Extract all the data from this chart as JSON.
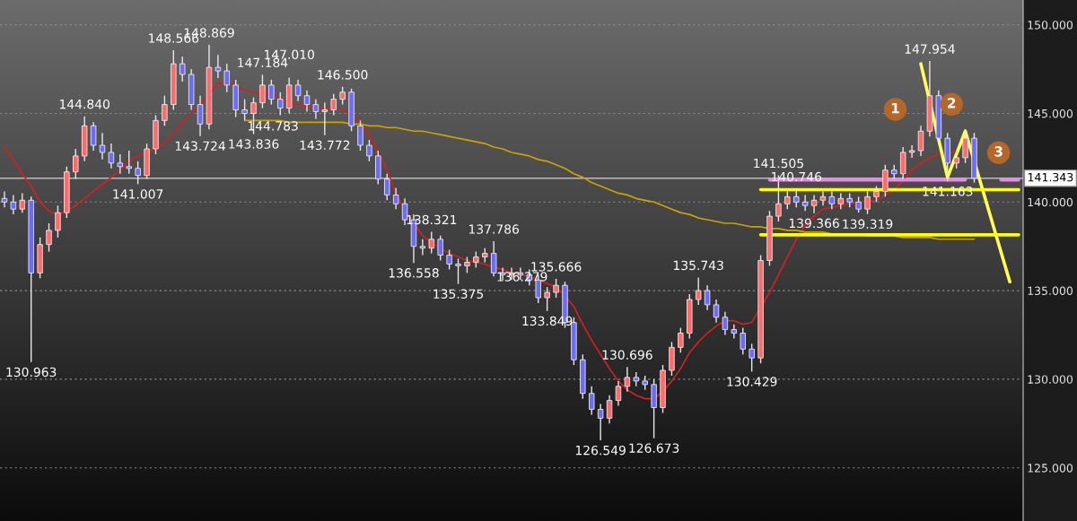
{
  "chart_data": {
    "type": "candlestick",
    "categories": [
      null,
      null,
      null,
      null,
      null,
      null,
      null,
      null,
      null,
      null,
      null,
      null,
      null,
      null,
      null,
      null,
      null,
      null,
      null,
      null,
      null,
      null,
      null,
      null,
      null,
      null,
      null,
      null,
      null,
      null,
      null,
      null,
      null,
      null,
      null,
      null,
      null,
      null,
      null,
      null,
      null,
      null,
      null,
      null,
      null,
      null,
      null,
      null,
      null,
      null,
      null,
      null,
      null,
      null,
      null,
      null,
      null,
      null,
      null,
      null,
      null,
      null,
      null,
      null,
      null,
      null,
      null,
      null,
      null,
      null,
      null,
      null,
      null,
      null,
      null,
      null,
      null,
      null,
      null,
      null,
      null,
      null,
      null,
      null,
      null,
      null,
      null,
      null,
      null,
      null,
      null,
      null,
      null,
      null,
      null,
      null,
      null,
      null,
      null,
      null,
      null,
      null,
      null,
      null,
      null,
      null,
      null,
      null,
      null,
      null,
      null,
      null,
      null,
      null,
      null
    ],
    "ohlc": [
      [
        140.2,
        140.6,
        139.7,
        140.0
      ],
      [
        140.0,
        140.4,
        139.3,
        139.6
      ],
      [
        139.6,
        140.5,
        139.4,
        140.1
      ],
      [
        140.1,
        140.3,
        130.963,
        136.0
      ],
      [
        136.0,
        138.0,
        135.7,
        137.6
      ],
      [
        137.6,
        138.8,
        137.2,
        138.4
      ],
      [
        138.4,
        139.8,
        138.0,
        139.4
      ],
      [
        139.4,
        142.0,
        139.1,
        141.7
      ],
      [
        141.7,
        143.0,
        141.3,
        142.6
      ],
      [
        142.6,
        144.84,
        142.3,
        144.3
      ],
      [
        144.3,
        144.5,
        142.9,
        143.2
      ],
      [
        143.2,
        143.9,
        142.4,
        142.8
      ],
      [
        142.8,
        143.3,
        141.9,
        142.2
      ],
      [
        142.2,
        142.7,
        141.6,
        142.0
      ],
      [
        142.0,
        142.9,
        141.6,
        141.9
      ],
      [
        141.9,
        142.3,
        141.007,
        141.5
      ],
      [
        141.5,
        143.3,
        141.3,
        143.0
      ],
      [
        143.0,
        144.9,
        142.7,
        144.6
      ],
      [
        144.6,
        146.0,
        144.3,
        145.5
      ],
      [
        145.5,
        148.566,
        145.2,
        147.8
      ],
      [
        147.8,
        148.2,
        146.8,
        147.2
      ],
      [
        147.2,
        147.5,
        145.2,
        145.5
      ],
      [
        145.5,
        146.0,
        143.724,
        144.4
      ],
      [
        144.4,
        148.869,
        144.1,
        147.6
      ],
      [
        147.6,
        148.3,
        147.0,
        147.4
      ],
      [
        147.4,
        147.8,
        146.2,
        146.6
      ],
      [
        146.6,
        146.9,
        144.8,
        145.2
      ],
      [
        145.2,
        145.8,
        144.6,
        145.0
      ],
      [
        145.0,
        145.9,
        143.836,
        145.6
      ],
      [
        145.6,
        147.184,
        145.3,
        146.6
      ],
      [
        146.6,
        146.9,
        145.5,
        145.8
      ],
      [
        145.8,
        146.2,
        144.9,
        145.3
      ],
      [
        145.3,
        147.01,
        145.0,
        146.6
      ],
      [
        146.6,
        146.9,
        145.7,
        146.0
      ],
      [
        146.0,
        146.3,
        145.1,
        145.5
      ],
      [
        145.5,
        145.8,
        144.7,
        145.1
      ],
      [
        145.1,
        145.6,
        143.772,
        145.2
      ],
      [
        145.2,
        146.1,
        144.9,
        145.8
      ],
      [
        145.8,
        146.5,
        145.5,
        146.2
      ],
      [
        146.2,
        146.4,
        144.0,
        144.3
      ],
      [
        144.3,
        144.6,
        142.9,
        143.2
      ],
      [
        143.2,
        143.5,
        142.3,
        142.6
      ],
      [
        142.6,
        142.9,
        141.0,
        141.3
      ],
      [
        141.3,
        141.6,
        140.1,
        140.4
      ],
      [
        140.4,
        140.8,
        139.6,
        139.9
      ],
      [
        139.9,
        140.2,
        138.7,
        139.0
      ],
      [
        139.0,
        139.3,
        136.558,
        137.5
      ],
      [
        137.5,
        137.9,
        137.0,
        137.4
      ],
      [
        137.4,
        138.321,
        137.1,
        137.9
      ],
      [
        137.9,
        138.1,
        136.7,
        137.0
      ],
      [
        137.0,
        137.3,
        136.2,
        136.5
      ],
      [
        136.5,
        136.8,
        135.375,
        136.4
      ],
      [
        136.4,
        136.9,
        136.0,
        136.6
      ],
      [
        136.6,
        137.2,
        136.3,
        136.9
      ],
      [
        136.9,
        137.4,
        136.6,
        137.1
      ],
      [
        137.1,
        137.786,
        135.8,
        136.0
      ],
      [
        136.0,
        136.3,
        135.6,
        135.9
      ],
      [
        135.9,
        136.3,
        135.6,
        136.0
      ],
      [
        136.0,
        136.3,
        135.6,
        135.9
      ],
      [
        135.9,
        136.2,
        135.3,
        135.6
      ],
      [
        135.6,
        135.9,
        134.3,
        134.6
      ],
      [
        134.6,
        135.2,
        133.849,
        134.9
      ],
      [
        134.9,
        135.666,
        134.6,
        135.3
      ],
      [
        135.3,
        135.5,
        132.9,
        133.2
      ],
      [
        133.2,
        133.5,
        130.8,
        131.1
      ],
      [
        131.1,
        131.4,
        128.9,
        129.2
      ],
      [
        129.2,
        129.6,
        128.0,
        128.3
      ],
      [
        128.3,
        128.6,
        126.549,
        127.8
      ],
      [
        127.8,
        129.1,
        127.5,
        128.8
      ],
      [
        128.8,
        129.9,
        128.5,
        129.6
      ],
      [
        129.6,
        130.696,
        129.3,
        130.1
      ],
      [
        130.1,
        130.4,
        129.6,
        129.9
      ],
      [
        129.9,
        130.2,
        129.4,
        129.7
      ],
      [
        129.7,
        130.0,
        126.673,
        128.4
      ],
      [
        128.4,
        130.8,
        128.1,
        130.5
      ],
      [
        130.5,
        132.1,
        130.2,
        131.8
      ],
      [
        131.8,
        132.9,
        131.5,
        132.6
      ],
      [
        132.6,
        134.8,
        132.3,
        134.5
      ],
      [
        134.5,
        135.743,
        134.2,
        135.0
      ],
      [
        135.0,
        135.3,
        133.9,
        134.2
      ],
      [
        134.2,
        134.5,
        133.2,
        133.5
      ],
      [
        133.5,
        133.8,
        132.5,
        132.8
      ],
      [
        132.8,
        133.1,
        132.3,
        132.6
      ],
      [
        132.6,
        132.9,
        131.4,
        131.7
      ],
      [
        131.7,
        132.0,
        130.429,
        131.2
      ],
      [
        131.2,
        137.0,
        130.9,
        136.7
      ],
      [
        136.7,
        139.5,
        136.4,
        139.2
      ],
      [
        139.2,
        141.505,
        138.9,
        139.9
      ],
      [
        139.9,
        140.6,
        139.6,
        140.3
      ],
      [
        140.3,
        140.746,
        139.7,
        140.0
      ],
      [
        140.0,
        140.4,
        139.5,
        139.8
      ],
      [
        139.8,
        140.4,
        139.366,
        140.1
      ],
      [
        140.1,
        140.6,
        139.8,
        140.3
      ],
      [
        140.3,
        140.6,
        139.6,
        139.9
      ],
      [
        139.9,
        140.5,
        139.6,
        140.2
      ],
      [
        140.2,
        140.5,
        139.7,
        140.0
      ],
      [
        140.0,
        140.3,
        139.4,
        139.6
      ],
      [
        139.6,
        140.6,
        139.319,
        140.3
      ],
      [
        140.3,
        140.9,
        140.0,
        140.6
      ],
      [
        140.6,
        142.1,
        140.3,
        141.8
      ],
      [
        141.8,
        142.1,
        141.3,
        141.6
      ],
      [
        141.6,
        143.1,
        141.3,
        142.8
      ],
      [
        142.8,
        143.2,
        142.5,
        142.9
      ],
      [
        142.9,
        144.3,
        142.6,
        144.0
      ],
      [
        144.0,
        147.954,
        143.7,
        146.0
      ],
      [
        146.0,
        146.3,
        143.3,
        143.6
      ],
      [
        143.6,
        143.9,
        141.163,
        142.2
      ],
      [
        142.2,
        142.8,
        141.9,
        142.5
      ],
      [
        142.5,
        144.1,
        142.2,
        143.6
      ],
      [
        143.6,
        143.9,
        141.1,
        141.343
      ],
      null,
      null,
      null,
      null,
      null
    ],
    "colors": [
      "#6b6bff",
      "#6b6bff",
      "#ff6b6b",
      "#6b6bff",
      "#ff6b6b",
      "#ff6b6b",
      "#ff6b6b",
      "#ff6b6b",
      "#ff6b6b",
      "#ff6b6b",
      "#6b6bff",
      "#6b6bff",
      "#6b6bff",
      "#6b6bff",
      "#6b6bff",
      "#6b6bff",
      "#ff6b6b",
      "#ff6b6b",
      "#ff6b6b",
      "#ff6b6b",
      "#6b6bff",
      "#6b6bff",
      "#6b6bff",
      "#ff6b6b",
      "#6b6bff",
      "#6b6bff",
      "#6b6bff",
      "#6b6bff",
      "#ff6b6b",
      "#ff6b6b",
      "#6b6bff",
      "#6b6bff",
      "#ff6b6b",
      "#6b6bff",
      "#6b6bff",
      "#6b6bff",
      "#ff6b6b",
      "#ff6b6b",
      "#ff6b6b",
      "#6b6bff",
      "#6b6bff",
      "#6b6bff",
      "#6b6bff",
      "#6b6bff",
      "#6b6bff",
      "#6b6bff",
      "#6b6bff",
      "#6b6bff",
      "#ff6b6b",
      "#6b6bff",
      "#6b6bff",
      "#6b6bff",
      "#ff6b6b",
      "#ff6b6b",
      "#ff6b6b",
      "#6b6bff",
      "#6b6bff",
      "#ff6b6b",
      "#6b6bff",
      "#6b6bff",
      "#6b6bff",
      "#ff6b6b",
      "#ff6b6b",
      "#6b6bff",
      "#6b6bff",
      "#6b6bff",
      "#6b6bff",
      "#6b6bff",
      "#ff6b6b",
      "#ff6b6b",
      "#ff6b6b",
      "#6b6bff",
      "#6b6bff",
      "#6b6bff",
      "#ff6b6b",
      "#ff6b6b",
      "#ff6b6b",
      "#ff6b6b",
      "#ff6b6b",
      "#6b6bff",
      "#6b6bff",
      "#6b6bff",
      "#6b6bff",
      "#6b6bff",
      "#6b6bff",
      "#ff6b6b",
      "#ff6b6b",
      "#ff6b6b",
      "#ff6b6b",
      "#6b6bff",
      "#6b6bff",
      "#ff6b6b",
      "#ff6b6b",
      "#6b6bff",
      "#ff6b6b",
      "#6b6bff",
      "#6b6bff",
      "#ff6b6b",
      "#ff6b6b",
      "#ff6b6b",
      "#6b6bff",
      "#ff6b6b",
      "#ff6b6b",
      "#ff6b6b",
      "#ff6b6b",
      "#6b6bff",
      "#6b6bff",
      "#ff6b6b",
      "#ff6b6b",
      "#6b6bff",
      null,
      null,
      null,
      null,
      null
    ],
    "series": [
      {
        "type": "line",
        "color": "#d42020",
        "values": [
          143.1,
          142.4,
          141.6,
          140.9,
          140.0,
          139.5,
          139.3,
          139.5,
          139.8,
          140.2,
          140.6,
          141.0,
          141.4,
          141.8,
          142.3,
          142.6,
          142.9,
          143.0,
          143.3,
          143.9,
          144.5,
          145.0,
          145.5,
          null,
          146.7,
          146.7,
          146.6,
          146.3,
          146.2,
          146.1,
          146.1,
          145.9,
          145.6,
          145.5,
          145.4,
          145.4,
          145.3,
          145.3,
          145.2,
          145.0,
          144.5,
          143.8,
          142.8,
          141.8,
          140.5,
          139.5,
          null,
          138.1,
          137.7,
          137.4,
          137.1,
          136.9,
          136.7,
          136.6,
          136.5,
          136.3,
          136.2,
          136.0,
          135.9,
          135.8,
          135.6,
          135.4,
          135.2,
          134.7,
          134.1,
          133.1,
          132.2,
          131.4,
          130.6,
          129.9,
          129.4,
          129.1,
          128.9,
          128.9,
          129.3,
          129.9,
          130.6,
          131.5,
          132.1,
          132.6,
          133.0,
          133.3,
          133.3,
          133.1,
          133.2,
          null,
          134.9,
          135.9,
          136.9,
          137.9,
          138.7,
          139.2,
          139.6,
          139.7,
          139.8,
          139.9,
          140.0,
          140.0,
          140.1,
          140.4,
          140.7,
          141.2,
          141.8,
          142.2,
          142.5,
          142.7,
          142.7,
          142.9,
          null,
          null,
          null,
          null,
          null,
          null,
          null
        ]
      },
      {
        "type": "line",
        "color": "#c9a400",
        "values": [
          null,
          null,
          null,
          null,
          null,
          null,
          null,
          null,
          null,
          null,
          null,
          null,
          null,
          null,
          null,
          null,
          null,
          null,
          null,
          null,
          null,
          null,
          null,
          null,
          null,
          null,
          null,
          144.6,
          144.6,
          144.6,
          144.6,
          144.6,
          144.5,
          144.5,
          144.5,
          144.5,
          144.5,
          144.5,
          144.5,
          144.4,
          144.4,
          144.3,
          144.3,
          144.2,
          144.2,
          144.1,
          144.0,
          144.0,
          143.9,
          143.8,
          143.7,
          143.6,
          143.5,
          143.4,
          143.3,
          143.1,
          143.0,
          142.8,
          142.7,
          142.6,
          142.4,
          142.3,
          142.1,
          141.9,
          141.6,
          141.4,
          141.1,
          140.9,
          140.7,
          140.5,
          140.4,
          140.2,
          140.1,
          140.0,
          139.8,
          139.6,
          139.4,
          139.3,
          139.1,
          139.0,
          138.9,
          138.8,
          138.8,
          138.7,
          138.6,
          138.6,
          138.5,
          138.5,
          138.4,
          138.4,
          138.3,
          138.3,
          138.3,
          138.2,
          138.2,
          138.2,
          138.2,
          138.1,
          null,
          null,
          138.1,
          138.0,
          138.0,
          138.0,
          138.0,
          137.9,
          137.9,
          137.9,
          137.9,
          137.9,
          null,
          null,
          null,
          null,
          null
        ]
      },
      {
        "type": "line",
        "color": "#ee82ee",
        "values": [
          null,
          null,
          null,
          null,
          null,
          null,
          null,
          null,
          null,
          null,
          null,
          null,
          null,
          null,
          null,
          null,
          null,
          null,
          null,
          null,
          null,
          null,
          null,
          null,
          null,
          null,
          null,
          null,
          null,
          null,
          null,
          null,
          null,
          null,
          null,
          null,
          null,
          null,
          null,
          null,
          null,
          null,
          null,
          null,
          null,
          null,
          null,
          null,
          null,
          null,
          null,
          null,
          null,
          null,
          null,
          null,
          null,
          null,
          null,
          null,
          null,
          null,
          null,
          null,
          null,
          null,
          null,
          null,
          null,
          null,
          null,
          null,
          null,
          null,
          null,
          null,
          null,
          null,
          null,
          null,
          null,
          null,
          null,
          null,
          null,
          null,
          141.25,
          141.25,
          141.25,
          141.25,
          141.25,
          141.25,
          141.25,
          141.25,
          141.25,
          141.25,
          141.25,
          141.25,
          141.25,
          141.25,
          141.25,
          141.25,
          141.25,
          141.25,
          141.25,
          141.25,
          141.25,
          141.25,
          141.25,
          null,
          null,
          null,
          null,
          null,
          null
        ]
      },
      {
        "type": "line",
        "color": "#ee82ee",
        "values": [
          null,
          null,
          null,
          null,
          null,
          null,
          null,
          null,
          null,
          null,
          null,
          null,
          null,
          null,
          null,
          null,
          null,
          null,
          null,
          null,
          null,
          null,
          null,
          null,
          null,
          null,
          null,
          null,
          null,
          null,
          null,
          null,
          null,
          null,
          null,
          null,
          null,
          null,
          null,
          null,
          null,
          null,
          null,
          null,
          null,
          null,
          null,
          null,
          null,
          null,
          null,
          null,
          null,
          null,
          null,
          null,
          null,
          null,
          null,
          null,
          null,
          null,
          null,
          null,
          null,
          null,
          null,
          null,
          null,
          null,
          null,
          null,
          null,
          null,
          null,
          null,
          null,
          null,
          null,
          null,
          null,
          null,
          null,
          null,
          null,
          null,
          null,
          null,
          null,
          null,
          null,
          null,
          null,
          null,
          null,
          null,
          null,
          null,
          null,
          null,
          null,
          null,
          null,
          null,
          null,
          null,
          null,
          null,
          null,
          null,
          null,
          null,
          141.25,
          141.25,
          141.25
        ]
      },
      {
        "type": "line",
        "color": "#ffff55",
        "values": [
          null,
          null,
          null,
          null,
          null,
          null,
          null,
          null,
          null,
          null,
          null,
          null,
          null,
          null,
          null,
          null,
          null,
          null,
          null,
          null,
          null,
          null,
          null,
          null,
          null,
          null,
          null,
          null,
          null,
          null,
          null,
          null,
          null,
          null,
          null,
          null,
          null,
          null,
          null,
          null,
          null,
          null,
          null,
          null,
          null,
          null,
          null,
          null,
          null,
          null,
          null,
          null,
          null,
          null,
          null,
          null,
          null,
          null,
          null,
          null,
          null,
          null,
          null,
          null,
          null,
          null,
          null,
          null,
          null,
          null,
          null,
          null,
          null,
          null,
          null,
          null,
          null,
          null,
          null,
          null,
          null,
          null,
          null,
          null,
          null,
          null,
          null,
          null,
          null,
          null,
          null,
          null,
          null,
          null,
          null,
          null,
          null,
          null,
          null,
          null,
          null,
          null,
          null,
          147.8,
          null,
          null,
          141.4,
          null,
          144.0,
          null,
          null,
          null,
          null,
          135.5,
          null
        ]
      },
      {
        "type": "line",
        "color": "#ffff00",
        "values": [
          null,
          null,
          null,
          null,
          null,
          null,
          null,
          null,
          null,
          null,
          null,
          null,
          null,
          null,
          null,
          null,
          null,
          null,
          null,
          null,
          null,
          null,
          null,
          null,
          null,
          null,
          null,
          null,
          null,
          null,
          null,
          null,
          null,
          null,
          null,
          null,
          null,
          null,
          null,
          null,
          null,
          null,
          null,
          null,
          null,
          null,
          null,
          null,
          null,
          null,
          null,
          null,
          null,
          null,
          null,
          null,
          null,
          null,
          null,
          null,
          null,
          null,
          null,
          null,
          null,
          null,
          null,
          null,
          null,
          null,
          null,
          null,
          null,
          null,
          null,
          null,
          null,
          null,
          null,
          null,
          null,
          null,
          null,
          null,
          null,
          140.7,
          140.7,
          140.7,
          140.7,
          140.7,
          140.7,
          140.7,
          140.7,
          140.7,
          140.7,
          140.7,
          140.7,
          140.7,
          140.7,
          140.7,
          140.7,
          140.7,
          140.7,
          140.7,
          140.7,
          140.7,
          140.7,
          140.7,
          140.7,
          140.7,
          140.7,
          140.7,
          140.7,
          140.7,
          140.7
        ]
      },
      {
        "type": "line",
        "color": "#ffff00",
        "values": [
          null,
          null,
          null,
          null,
          null,
          null,
          null,
          null,
          null,
          null,
          null,
          null,
          null,
          null,
          null,
          null,
          null,
          null,
          null,
          null,
          null,
          null,
          null,
          null,
          null,
          null,
          null,
          null,
          null,
          null,
          null,
          null,
          null,
          null,
          null,
          null,
          null,
          null,
          null,
          null,
          null,
          null,
          null,
          null,
          null,
          null,
          null,
          null,
          null,
          null,
          null,
          null,
          null,
          null,
          null,
          null,
          null,
          null,
          null,
          null,
          null,
          null,
          null,
          null,
          null,
          null,
          null,
          null,
          null,
          null,
          null,
          null,
          null,
          null,
          null,
          null,
          null,
          null,
          null,
          null,
          null,
          null,
          null,
          null,
          null,
          138.15,
          138.15,
          138.15,
          138.15,
          138.15,
          138.15,
          138.15,
          138.15,
          138.15,
          138.15,
          138.15,
          138.15,
          138.15,
          138.15,
          138.15,
          138.15,
          138.15,
          138.15,
          138.15,
          138.15,
          138.15,
          138.15,
          138.15,
          138.15,
          138.15,
          138.15,
          138.15,
          138.15,
          138.15,
          138.15
        ]
      }
    ],
    "ref_lines": [
      {
        "axis": "y",
        "value": 141.343,
        "label": "141.343",
        "color": "#bbbbbb"
      }
    ],
    "annotations": [
      {
        "text": "130.963",
        "y": 130.963
      },
      {
        "text": "144.840",
        "y": 144.84
      },
      {
        "text": "141.007",
        "y": 141.007
      },
      {
        "text": "148.566",
        "y": 148.566
      },
      {
        "text": "143.724",
        "y": 143.724
      },
      {
        "text": "148.869",
        "y": 148.869
      },
      {
        "text": "143.836",
        "y": 143.836
      },
      {
        "text": "147.184",
        "y": 147.184
      },
      {
        "text": "147.010",
        "y": 147.01
      },
      {
        "text": "143.772",
        "y": 143.772
      },
      {
        "text": "146.500",
        "y": 146.5
      },
      {
        "text": "144.783",
        "y": 144.783
      },
      {
        "text": "136.558",
        "y": 136.558
      },
      {
        "text": "138.321",
        "y": 138.321
      },
      {
        "text": "135.375",
        "y": 135.375
      },
      {
        "text": "137.786",
        "y": 137.786
      },
      {
        "text": "136.279",
        "y": 136.279
      },
      {
        "text": "133.849",
        "y": 133.849
      },
      {
        "text": "135.666",
        "y": 135.666
      },
      {
        "text": "126.549",
        "y": 126.549
      },
      {
        "text": "130.696",
        "y": 130.696
      },
      {
        "text": "126.673",
        "y": 126.673
      },
      {
        "text": "135.743",
        "y": 135.743
      },
      {
        "text": "130.429",
        "y": 130.429
      },
      {
        "text": "141.505",
        "y": 141.505
      },
      {
        "text": "140.746",
        "y": 140.746
      },
      {
        "text": "139.366",
        "y": 139.366
      },
      {
        "text": "139.319",
        "y": 139.319
      },
      {
        "text": "147.954",
        "y": 147.954
      },
      {
        "text": "141.163",
        "y": 141.163
      },
      "1",
      "2",
      "3"
    ],
    "ylim": [
      122.0,
      151.4
    ],
    "yticks": [
      {
        "value": 125,
        "label": "125.000"
      },
      {
        "value": 130,
        "label": "130.000"
      },
      {
        "value": 135,
        "label": "135.000"
      },
      {
        "value": 140,
        "label": "140.000"
      },
      {
        "value": 145,
        "label": "145.000"
      },
      {
        "value": 150,
        "label": "150.000"
      }
    ],
    "grid": "y",
    "tick_labels": "y"
  }
}
